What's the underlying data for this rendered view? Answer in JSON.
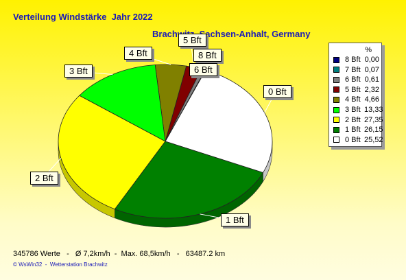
{
  "header": {
    "title": "Verteilung Windstärke  Jahr 2022",
    "subtitle": "Brachwitz, Sachsen-Anhalt, Germany"
  },
  "chart_data": {
    "type": "pie",
    "title": "Verteilung Windstärke  Jahr 2022",
    "subtitle": "Brachwitz, Sachsen-Anhalt, Germany",
    "legend_position": "right",
    "legend_header": "%",
    "slices": [
      {
        "label": "8 Bft",
        "value": 0.0,
        "value_text": "0,00",
        "color": "#000080"
      },
      {
        "label": "7 Bft",
        "value": 0.07,
        "value_text": "0,07",
        "color": "#008080"
      },
      {
        "label": "6 Bft",
        "value": 0.61,
        "value_text": "0,61",
        "color": "#808080"
      },
      {
        "label": "5 Bft",
        "value": 2.32,
        "value_text": "2,32",
        "color": "#800000"
      },
      {
        "label": "4 Bft",
        "value": 4.66,
        "value_text": "4,66",
        "color": "#808000"
      },
      {
        "label": "3 Bft",
        "value": 13.33,
        "value_text": "13,33",
        "color": "#00ff00"
      },
      {
        "label": "2 Bft",
        "value": 27.35,
        "value_text": "27,35",
        "color": "#ffff00"
      },
      {
        "label": "1 Bft",
        "value": 26.15,
        "value_text": "26,15",
        "color": "#008000"
      },
      {
        "label": "0 Bft",
        "value": 25.52,
        "value_text": "25,52",
        "color": "#ffffff"
      }
    ],
    "callouts": [
      "5 Bft",
      "8 Bft",
      "6 Bft",
      "4 Bft",
      "3 Bft",
      "0 Bft",
      "2 Bft",
      "1 Bft"
    ]
  },
  "footer": {
    "stats": "345786 Werte   -   Ø 7,2km/h  -  Max. 68,5km/h   -   63487.2 km",
    "credit": "© WsWin32  -  Wetterstation Brachwitz"
  }
}
